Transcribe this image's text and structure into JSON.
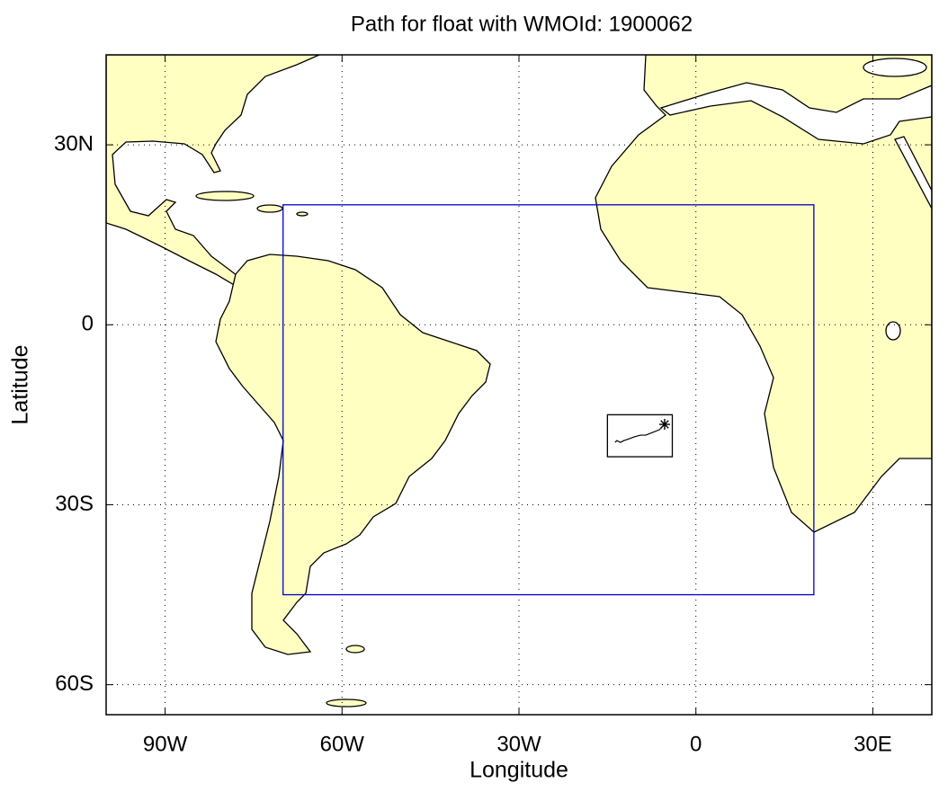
{
  "chart_data": {
    "type": "map",
    "title": "Path for float with WMOId: 1900062",
    "xlabel": "Longitude",
    "ylabel": "Latitude",
    "xlim": [
      -100,
      40
    ],
    "ylim": [
      -65,
      45
    ],
    "xticks": [
      {
        "value": -90,
        "label": "90W"
      },
      {
        "value": -60,
        "label": "60W"
      },
      {
        "value": -30,
        "label": "30W"
      },
      0,
      {
        "value": 30,
        "label": "30E"
      }
    ],
    "yticks": [
      {
        "value": -60,
        "label": "60S"
      },
      {
        "value": -30,
        "label": "30S"
      },
      0,
      {
        "value": 30,
        "label": "30N"
      }
    ],
    "grid": true,
    "region": {
      "lon": [
        -70,
        20
      ],
      "lat": [
        -45,
        20
      ],
      "color": "#0000cc"
    },
    "inset_box": {
      "lon": [
        -15,
        -4
      ],
      "lat": [
        -22,
        -15
      ],
      "color": "#000000"
    },
    "track": {
      "lon": [
        -5.3,
        -6.2,
        -7.5,
        -8.5,
        -9.4,
        -10.5,
        -11.3,
        -12.2,
        -12.8,
        -13.4,
        -13.7
      ],
      "lat": [
        -16.6,
        -17.5,
        -18.0,
        -18.4,
        -18.4,
        -18.7,
        -19.0,
        -19.3,
        -19.6,
        -19.3,
        -19.6
      ],
      "color": "#000000"
    }
  }
}
